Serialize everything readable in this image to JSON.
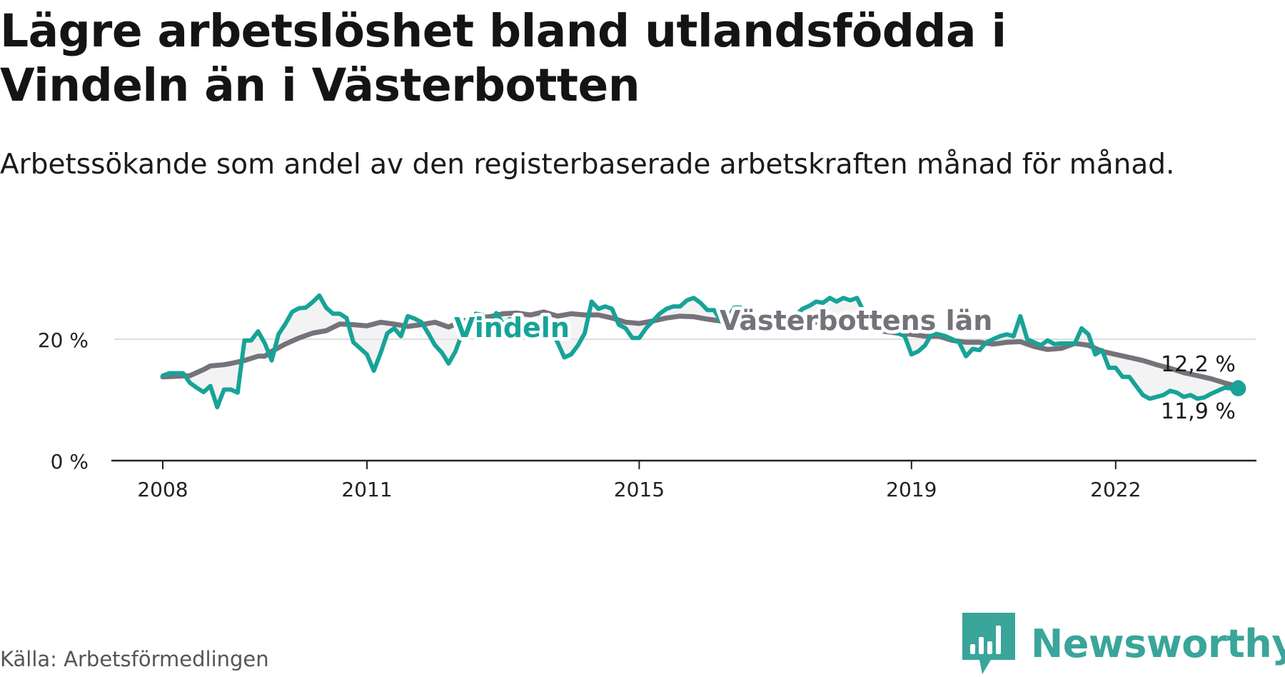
{
  "title": "Lägre arbetslöshet bland utlandsfödda i Vindeln än i Västerbotten",
  "subtitle": "Arbetssökande som andel av den registerbaserade arbetskraften månad för månad.",
  "source": "Källa: Arbetsförmedlingen",
  "brand": {
    "name": "Newsworthy",
    "icon": "newsworthy-logo-icon"
  },
  "colors": {
    "vindeln": "#17a398",
    "lan": "#75737a",
    "grid": "#dddddd",
    "axis": "#222222"
  },
  "chart_data": {
    "type": "line",
    "title": "Lägre arbetslöshet bland utlandsfödda i Vindeln än i Västerbotten",
    "xlabel": "",
    "ylabel": "",
    "x_range": [
      2008,
      2023.25
    ],
    "ylim": [
      0,
      30
    ],
    "y_ticks": [
      {
        "value": 0,
        "label": "0 %"
      },
      {
        "value": 20,
        "label": "20 %"
      }
    ],
    "x_ticks": [
      {
        "value": 2008,
        "label": "2008"
      },
      {
        "value": 2011,
        "label": "2011"
      },
      {
        "value": 2015,
        "label": "2015"
      },
      {
        "value": 2019,
        "label": "2019"
      },
      {
        "value": 2022,
        "label": "2022"
      }
    ],
    "series": [
      {
        "name": "Vindeln",
        "label": "Vindeln",
        "points": [
          [
            2008.0,
            14.0
          ],
          [
            2008.1,
            14.4
          ],
          [
            2008.3,
            14.4
          ],
          [
            2008.4,
            12.8
          ],
          [
            2008.5,
            12.0
          ],
          [
            2008.6,
            11.3
          ],
          [
            2008.7,
            12.3
          ],
          [
            2008.8,
            8.8
          ],
          [
            2008.9,
            11.7
          ],
          [
            2009.0,
            11.7
          ],
          [
            2009.1,
            11.2
          ],
          [
            2009.2,
            19.8
          ],
          [
            2009.3,
            19.8
          ],
          [
            2009.4,
            21.3
          ],
          [
            2009.5,
            19.3
          ],
          [
            2009.6,
            16.5
          ],
          [
            2009.7,
            20.8
          ],
          [
            2009.8,
            22.5
          ],
          [
            2009.9,
            24.5
          ],
          [
            2010.0,
            25.1
          ],
          [
            2010.1,
            25.2
          ],
          [
            2010.2,
            26.1
          ],
          [
            2010.3,
            27.2
          ],
          [
            2010.4,
            25.2
          ],
          [
            2010.5,
            24.2
          ],
          [
            2010.6,
            24.2
          ],
          [
            2010.7,
            23.5
          ],
          [
            2010.8,
            19.5
          ],
          [
            2010.9,
            18.5
          ],
          [
            2011.0,
            17.5
          ],
          [
            2011.1,
            14.8
          ],
          [
            2011.2,
            17.7
          ],
          [
            2011.3,
            21.0
          ],
          [
            2011.4,
            21.8
          ],
          [
            2011.5,
            20.5
          ],
          [
            2011.6,
            23.8
          ],
          [
            2011.7,
            23.4
          ],
          [
            2011.8,
            22.8
          ],
          [
            2011.9,
            21.0
          ],
          [
            2012.0,
            19.0
          ],
          [
            2012.1,
            17.8
          ],
          [
            2012.2,
            16.0
          ],
          [
            2012.3,
            18.0
          ],
          [
            2012.4,
            21.0
          ],
          [
            2012.5,
            21.2
          ],
          [
            2012.6,
            24.2
          ],
          [
            2012.7,
            24.0
          ],
          [
            2012.8,
            21.5
          ],
          [
            2012.9,
            24.3
          ],
          [
            2013.0,
            22.5
          ],
          [
            2013.1,
            23.3
          ],
          [
            2013.2,
            21.5
          ],
          [
            2013.3,
            22.5
          ],
          [
            2013.4,
            21.0
          ],
          [
            2013.5,
            21.8
          ],
          [
            2013.6,
            22.8
          ],
          [
            2013.7,
            21.5
          ],
          [
            2013.8,
            19.5
          ],
          [
            2013.9,
            17.0
          ],
          [
            2014.0,
            17.5
          ],
          [
            2014.1,
            19.0
          ],
          [
            2014.2,
            21.0
          ],
          [
            2014.3,
            26.2
          ],
          [
            2014.4,
            25.0
          ],
          [
            2014.5,
            25.4
          ],
          [
            2014.6,
            25.0
          ],
          [
            2014.7,
            22.4
          ],
          [
            2014.8,
            21.8
          ],
          [
            2014.9,
            20.2
          ],
          [
            2015.0,
            20.2
          ],
          [
            2015.1,
            21.8
          ],
          [
            2015.2,
            23.0
          ],
          [
            2015.3,
            24.2
          ],
          [
            2015.4,
            25.0
          ],
          [
            2015.5,
            25.4
          ],
          [
            2015.6,
            25.4
          ],
          [
            2015.7,
            26.4
          ],
          [
            2015.8,
            26.8
          ],
          [
            2015.9,
            26.0
          ],
          [
            2016.0,
            24.8
          ],
          [
            2016.1,
            24.8
          ],
          [
            2016.2,
            23.0
          ],
          [
            2016.3,
            23.6
          ],
          [
            2016.4,
            25.2
          ],
          [
            2016.5,
            25.2
          ],
          [
            2016.6,
            24.6
          ],
          [
            2016.7,
            22.4
          ],
          [
            2016.8,
            22.4
          ],
          [
            2016.9,
            21.5
          ],
          [
            2017.0,
            22.0
          ],
          [
            2017.1,
            22.5
          ],
          [
            2017.2,
            23.2
          ],
          [
            2017.3,
            24.0
          ],
          [
            2017.4,
            25.0
          ],
          [
            2017.5,
            25.5
          ],
          [
            2017.6,
            26.2
          ],
          [
            2017.7,
            26.0
          ],
          [
            2017.8,
            26.8
          ],
          [
            2017.9,
            26.2
          ],
          [
            2018.0,
            26.8
          ],
          [
            2018.1,
            26.4
          ],
          [
            2018.2,
            26.8
          ],
          [
            2018.3,
            24.5
          ],
          [
            2018.4,
            23.8
          ],
          [
            2018.5,
            23.0
          ],
          [
            2018.6,
            22.5
          ],
          [
            2018.7,
            22.0
          ],
          [
            2018.8,
            21.0
          ],
          [
            2018.9,
            20.5
          ],
          [
            2019.0,
            17.5
          ],
          [
            2019.1,
            18.0
          ],
          [
            2019.2,
            19.0
          ],
          [
            2019.3,
            21.0
          ],
          [
            2019.4,
            20.8
          ],
          [
            2019.5,
            20.5
          ],
          [
            2019.6,
            20.0
          ],
          [
            2019.7,
            19.5
          ],
          [
            2019.8,
            17.2
          ],
          [
            2019.9,
            18.4
          ],
          [
            2020.0,
            18.2
          ],
          [
            2020.1,
            19.5
          ],
          [
            2020.2,
            20.0
          ],
          [
            2020.3,
            20.5
          ],
          [
            2020.4,
            20.8
          ],
          [
            2020.5,
            20.5
          ],
          [
            2020.6,
            23.8
          ],
          [
            2020.7,
            20.0
          ],
          [
            2020.8,
            19.5
          ],
          [
            2020.9,
            19.0
          ],
          [
            2021.0,
            19.8
          ],
          [
            2021.1,
            19.2
          ],
          [
            2021.2,
            19.3
          ],
          [
            2021.3,
            19.3
          ],
          [
            2021.4,
            19.3
          ],
          [
            2021.5,
            21.8
          ],
          [
            2021.6,
            20.8
          ],
          [
            2021.7,
            17.5
          ],
          [
            2021.8,
            18.2
          ],
          [
            2021.9,
            15.3
          ],
          [
            2022.0,
            15.3
          ],
          [
            2022.1,
            13.8
          ],
          [
            2022.2,
            13.8
          ],
          [
            2022.3,
            12.3
          ],
          [
            2022.4,
            10.8
          ],
          [
            2022.5,
            10.2
          ],
          [
            2022.6,
            10.5
          ],
          [
            2022.7,
            10.8
          ],
          [
            2022.8,
            11.5
          ],
          [
            2022.9,
            11.2
          ],
          [
            2023.0,
            10.5
          ],
          [
            2023.1,
            10.8
          ],
          [
            2023.2,
            10.2
          ],
          [
            2023.3,
            10.4
          ],
          [
            2023.4,
            11.0
          ],
          [
            2023.5,
            11.5
          ],
          [
            2023.6,
            12.0
          ],
          [
            2023.7,
            11.9
          ],
          [
            2023.8,
            11.9
          ]
        ]
      },
      {
        "name": "Västerbottens län",
        "label": "Västerbottens län",
        "points": [
          [
            2008.0,
            13.8
          ],
          [
            2008.2,
            13.9
          ],
          [
            2008.4,
            14.0
          ],
          [
            2008.6,
            15.0
          ],
          [
            2008.7,
            15.6
          ],
          [
            2008.9,
            15.8
          ],
          [
            2009.0,
            16.0
          ],
          [
            2009.2,
            16.5
          ],
          [
            2009.4,
            17.2
          ],
          [
            2009.5,
            17.2
          ],
          [
            2009.6,
            18.0
          ],
          [
            2009.8,
            19.2
          ],
          [
            2010.0,
            20.2
          ],
          [
            2010.2,
            21.0
          ],
          [
            2010.4,
            21.4
          ],
          [
            2010.6,
            22.5
          ],
          [
            2010.8,
            22.4
          ],
          [
            2011.0,
            22.2
          ],
          [
            2011.2,
            22.8
          ],
          [
            2011.4,
            22.5
          ],
          [
            2011.6,
            22.1
          ],
          [
            2011.8,
            22.4
          ],
          [
            2012.0,
            22.8
          ],
          [
            2012.2,
            22.0
          ],
          [
            2012.4,
            23.0
          ],
          [
            2012.6,
            23.5
          ],
          [
            2012.8,
            23.7
          ],
          [
            2013.0,
            24.2
          ],
          [
            2013.2,
            24.3
          ],
          [
            2013.4,
            24.0
          ],
          [
            2013.6,
            24.5
          ],
          [
            2013.8,
            23.8
          ],
          [
            2014.0,
            24.2
          ],
          [
            2014.2,
            24.0
          ],
          [
            2014.4,
            24.0
          ],
          [
            2014.6,
            23.5
          ],
          [
            2014.8,
            22.8
          ],
          [
            2015.0,
            22.6
          ],
          [
            2015.2,
            23.0
          ],
          [
            2015.4,
            23.5
          ],
          [
            2015.6,
            23.8
          ],
          [
            2015.8,
            23.7
          ],
          [
            2016.0,
            23.3
          ],
          [
            2016.2,
            23.0
          ],
          [
            2016.4,
            22.4
          ],
          [
            2016.6,
            22.8
          ],
          [
            2016.8,
            22.4
          ],
          [
            2017.0,
            23.0
          ],
          [
            2017.2,
            23.2
          ],
          [
            2017.4,
            23.3
          ],
          [
            2017.6,
            22.8
          ],
          [
            2017.8,
            22.6
          ],
          [
            2018.0,
            22.8
          ],
          [
            2018.2,
            22.6
          ],
          [
            2018.4,
            21.8
          ],
          [
            2018.6,
            21.3
          ],
          [
            2018.8,
            21.0
          ],
          [
            2019.0,
            20.8
          ],
          [
            2019.2,
            20.5
          ],
          [
            2019.4,
            20.5
          ],
          [
            2019.6,
            19.8
          ],
          [
            2019.8,
            19.5
          ],
          [
            2020.0,
            19.5
          ],
          [
            2020.2,
            19.2
          ],
          [
            2020.4,
            19.5
          ],
          [
            2020.6,
            19.6
          ],
          [
            2020.8,
            18.8
          ],
          [
            2021.0,
            18.3
          ],
          [
            2021.2,
            18.5
          ],
          [
            2021.4,
            19.3
          ],
          [
            2021.6,
            19.0
          ],
          [
            2021.8,
            18.0
          ],
          [
            2022.0,
            17.5
          ],
          [
            2022.2,
            17.0
          ],
          [
            2022.4,
            16.5
          ],
          [
            2022.6,
            15.8
          ],
          [
            2022.8,
            15.2
          ],
          [
            2023.0,
            14.5
          ],
          [
            2023.2,
            14.0
          ],
          [
            2023.4,
            13.5
          ],
          [
            2023.6,
            12.8
          ],
          [
            2023.8,
            12.2
          ]
        ]
      }
    ],
    "end_labels": {
      "lan": "12,2 %",
      "vindeln": "11,9 %"
    },
    "legend": "inline labels on lines"
  }
}
